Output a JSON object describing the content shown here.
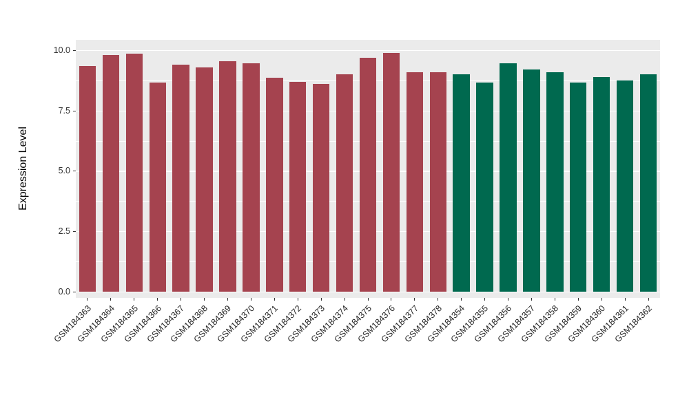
{
  "chart_data": {
    "type": "bar",
    "title": "",
    "xlabel": "",
    "ylabel": "Expression Level",
    "ylim": [
      0,
      10.4
    ],
    "grid": true,
    "legend": "none",
    "panel_background": "#EBEBEB",
    "gridline_color": "#FFFFFF",
    "y_ticks": [
      0,
      2.5,
      5,
      7.5,
      10
    ],
    "y_tick_labels": [
      "0.0",
      "2.5",
      "5.0",
      "7.5",
      "10.0"
    ],
    "categories": [
      "GSM184363",
      "GSM184364",
      "GSM184365",
      "GSM184366",
      "GSM184367",
      "GSM184368",
      "GSM184369",
      "GSM184370",
      "GSM184371",
      "GSM184372",
      "GSM184373",
      "GSM184374",
      "GSM184375",
      "GSM184376",
      "GSM184377",
      "GSM184378",
      "GSM184354",
      "GSM184355",
      "GSM184356",
      "GSM184357",
      "GSM184358",
      "GSM184359",
      "GSM184360",
      "GSM184361",
      "GSM184362"
    ],
    "values": [
      9.35,
      9.8,
      9.85,
      8.65,
      9.4,
      9.3,
      9.55,
      9.45,
      8.85,
      8.7,
      8.6,
      9.0,
      9.7,
      9.9,
      9.1,
      9.1,
      9.0,
      8.65,
      9.45,
      9.2,
      9.1,
      8.65,
      8.9,
      8.75,
      9.0
    ],
    "groups": [
      "group1",
      "group1",
      "group1",
      "group1",
      "group1",
      "group1",
      "group1",
      "group1",
      "group1",
      "group1",
      "group1",
      "group1",
      "group1",
      "group1",
      "group1",
      "group1",
      "group2",
      "group2",
      "group2",
      "group2",
      "group2",
      "group2",
      "group2",
      "group2",
      "group2"
    ],
    "group_colors": {
      "group1": "#A5434F",
      "group2": "#00694F"
    }
  }
}
